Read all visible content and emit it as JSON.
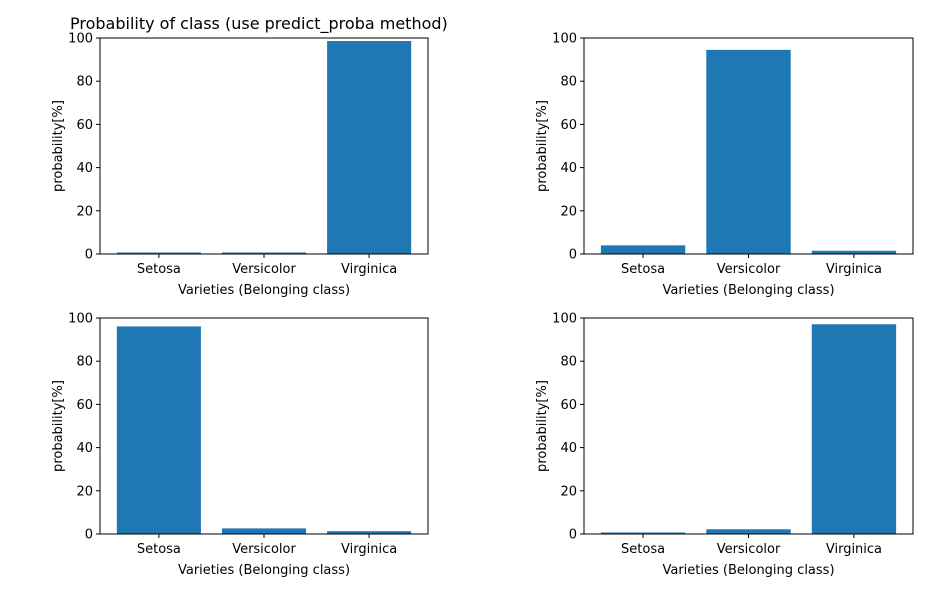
{
  "chart_data": [
    {
      "type": "bar",
      "title": "Probability of class (use predict_proba method)",
      "categories": [
        "Setosa",
        "Versicolor",
        "Virginica"
      ],
      "values": [
        0.7,
        0.7,
        98.6
      ],
      "xlabel": "Varieties (Belonging class)",
      "ylabel": "probability[%]",
      "ylim": [
        0,
        100
      ],
      "yticks": [
        "0",
        "20",
        "40",
        "60",
        "80",
        "100"
      ],
      "color": "#1f77b4"
    },
    {
      "type": "bar",
      "title": "",
      "categories": [
        "Setosa",
        "Versicolor",
        "Virginica"
      ],
      "values": [
        4.0,
        94.5,
        1.5
      ],
      "xlabel": "Varieties (Belonging class)",
      "ylabel": "probability[%]",
      "ylim": [
        0,
        100
      ],
      "yticks": [
        "0",
        "20",
        "40",
        "60",
        "80",
        "100"
      ],
      "color": "#1f77b4"
    },
    {
      "type": "bar",
      "title": "",
      "categories": [
        "Setosa",
        "Versicolor",
        "Virginica"
      ],
      "values": [
        96.1,
        2.6,
        1.3
      ],
      "xlabel": "Varieties (Belonging class)",
      "ylabel": "probability[%]",
      "ylim": [
        0,
        100
      ],
      "yticks": [
        "0",
        "20",
        "40",
        "60",
        "80",
        "100"
      ],
      "color": "#1f77b4"
    },
    {
      "type": "bar",
      "title": "",
      "categories": [
        "Setosa",
        "Versicolor",
        "Virginica"
      ],
      "values": [
        0.7,
        2.2,
        97.1
      ],
      "xlabel": "Varieties (Belonging class)",
      "ylabel": "probability[%]",
      "ylim": [
        0,
        100
      ],
      "yticks": [
        "0",
        "20",
        "40",
        "60",
        "80",
        "100"
      ],
      "color": "#1f77b4"
    }
  ]
}
